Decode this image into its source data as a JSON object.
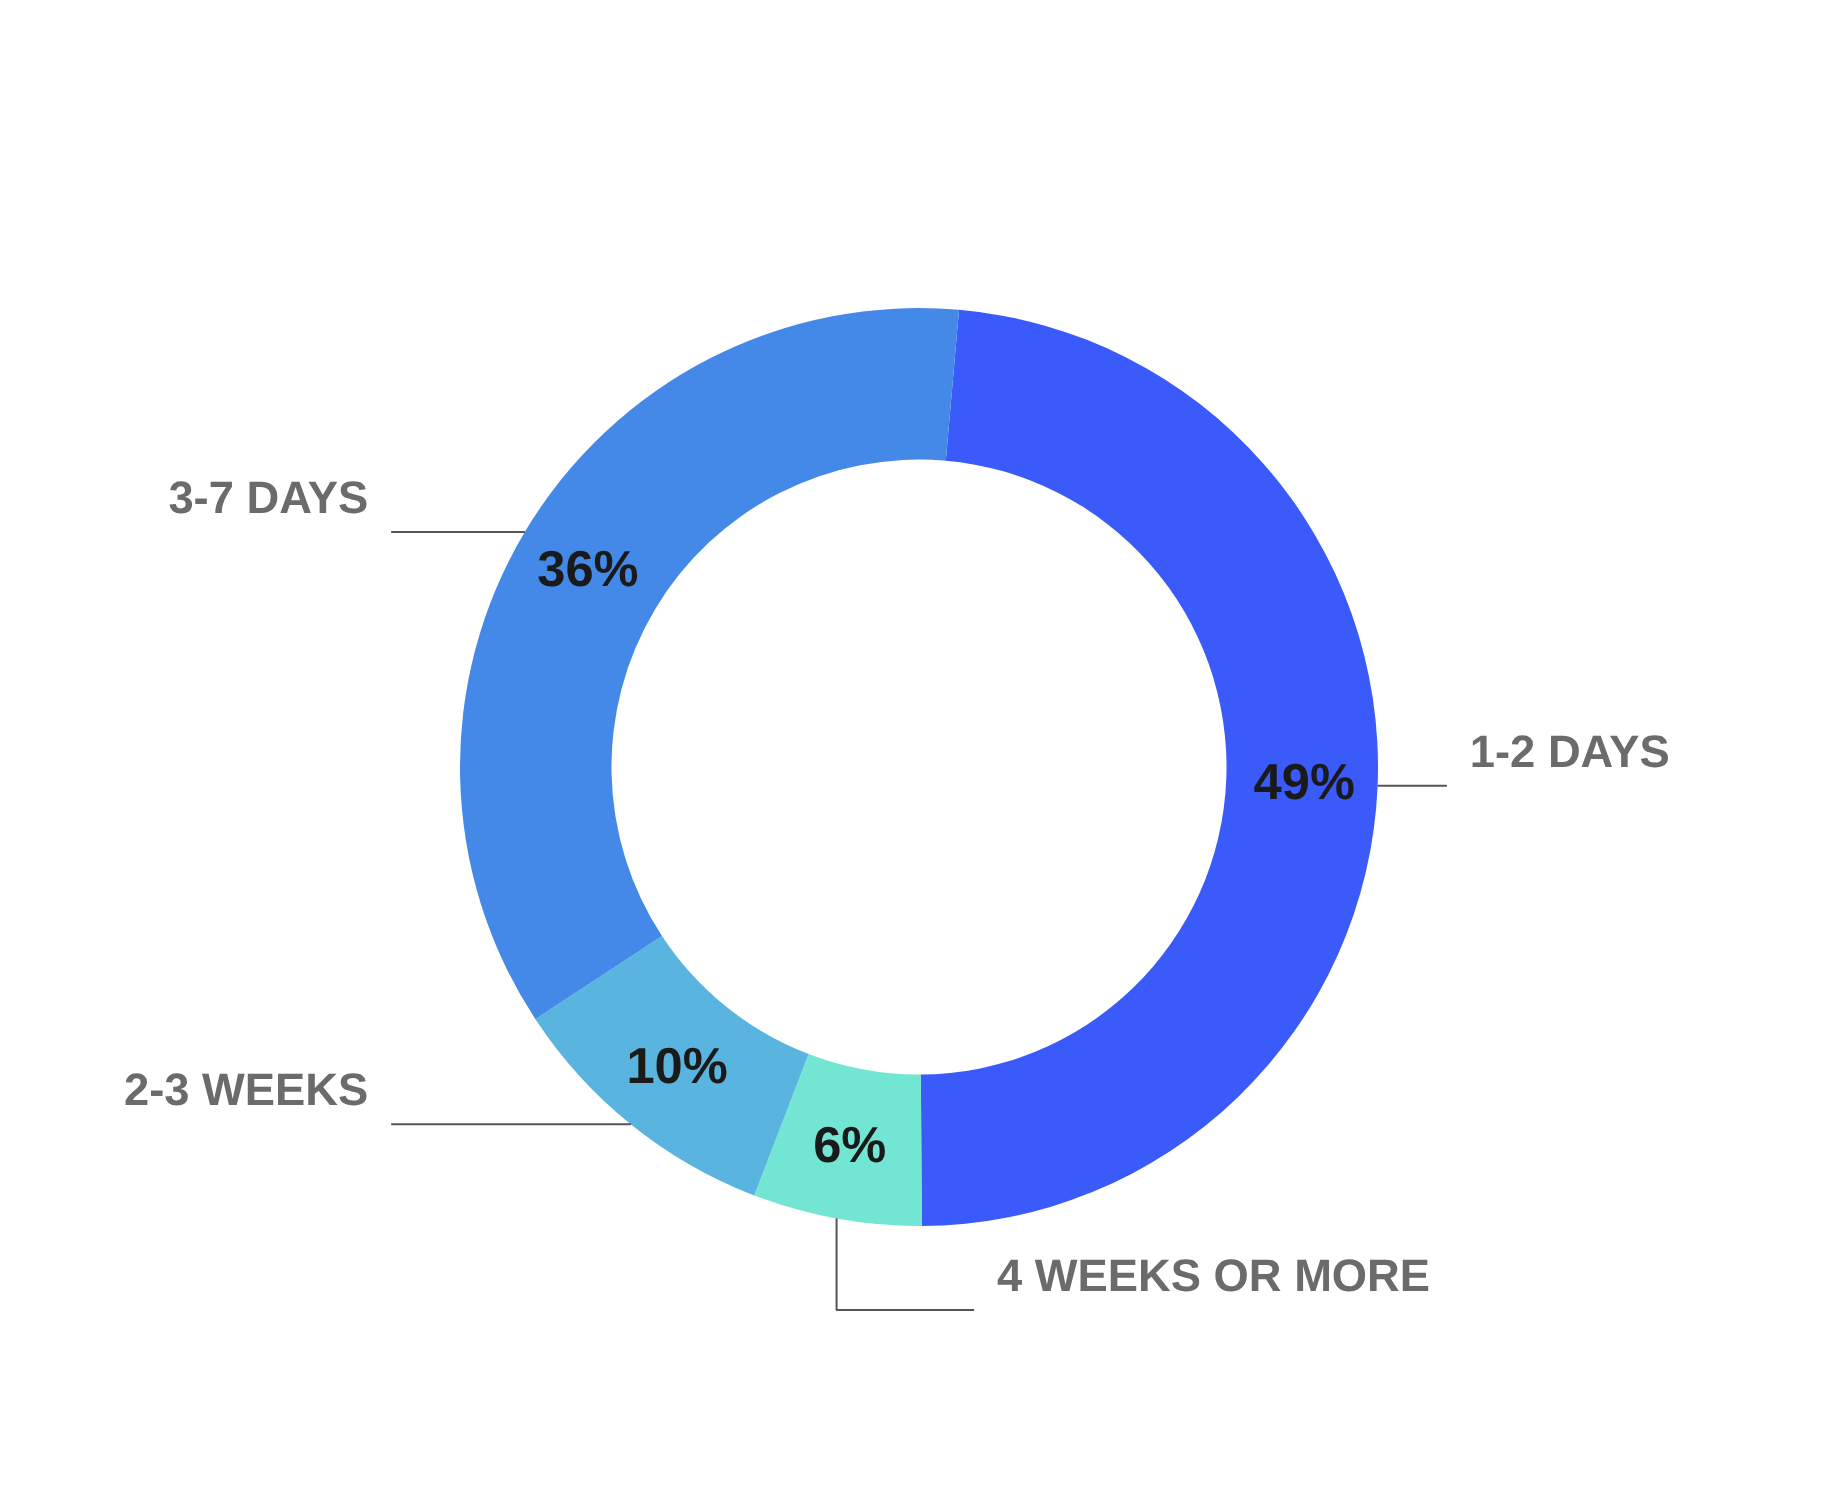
{
  "chart_data": {
    "type": "donut",
    "categories": [
      "1-2 DAYS",
      "4 WEEKS OR MORE",
      "2-3 WEEKS",
      "3-7 DAYS"
    ],
    "values": [
      49,
      6,
      10,
      36
    ],
    "colors": [
      "#3a5af9",
      "#72e6d2",
      "#5ab4e0",
      "#4589e8"
    ],
    "value_labels": [
      "49%",
      "6%",
      "10%",
      "36%"
    ]
  }
}
